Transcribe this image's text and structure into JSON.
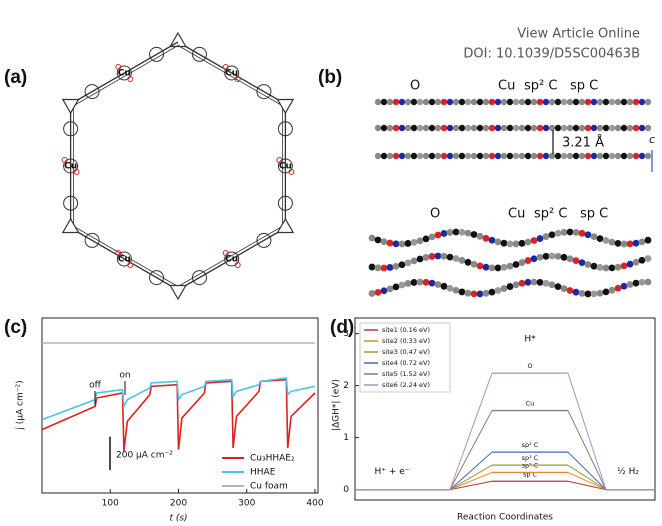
{
  "header": {
    "link": "View Article Online",
    "doi": "DOI: 10.1039/D5SC00463B"
  },
  "panels": {
    "a": {
      "label": "(a)",
      "cu_labels": [
        "Cu",
        "Cu",
        "Cu",
        "Cu",
        "Cu",
        "Cu"
      ]
    },
    "b": {
      "label": "(b)",
      "top_legend": [
        "O",
        "Cu",
        "sp² C",
        "sp C"
      ],
      "spacing": "3.21 Å",
      "axis": "c",
      "bottom_legend": [
        "O",
        "Cu",
        "sp² C",
        "sp C"
      ]
    },
    "c": {
      "label": "(c)"
    },
    "d": {
      "label": "(d)"
    }
  },
  "chart_data": [
    {
      "type": "line",
      "xlabel": "t (s)",
      "ylabel": "j (μA cm⁻²)",
      "x": [
        0,
        78,
        80,
        118,
        120,
        125,
        158,
        160,
        198,
        200,
        205,
        238,
        240,
        278,
        280,
        285,
        318,
        320,
        358,
        360,
        365,
        400
      ],
      "series": [
        {
          "name": "Cu₃HHAE₂",
          "color": "#e02020",
          "values": [
            380,
            520,
            570,
            600,
            250,
            430,
            590,
            640,
            650,
            260,
            450,
            600,
            660,
            670,
            270,
            460,
            610,
            670,
            680,
            270,
            460,
            600
          ]
        },
        {
          "name": "HHAE",
          "color": "#4cc3e8",
          "values": [
            440,
            560,
            600,
            620,
            520,
            560,
            630,
            660,
            670,
            560,
            590,
            640,
            670,
            680,
            580,
            610,
            650,
            670,
            690,
            590,
            610,
            640
          ]
        },
        {
          "name": "Cu foam",
          "color": "#b5b5b5",
          "values": [
            900,
            900,
            900,
            900,
            900,
            900,
            900,
            900,
            900,
            900,
            900,
            900,
            900,
            900,
            900,
            900,
            900,
            900,
            900,
            900,
            900,
            900
          ]
        }
      ],
      "xlim": [
        0,
        400
      ],
      "xticks": [
        100,
        200,
        300,
        400
      ],
      "ylim": [
        0,
        1050
      ],
      "annotations": [
        "off",
        "on"
      ],
      "scale_bar": {
        "value": 200,
        "label": "200 μA cm⁻²"
      },
      "legend": "lower right"
    },
    {
      "type": "profile",
      "xlabel": "Reaction Coordinates",
      "ylabel": "|ΔGH*| (eV)",
      "categories": [
        "H⁺ + e⁻",
        "H*",
        "½ H₂"
      ],
      "series": [
        {
          "name": "site1 (0.16 eV)",
          "color": "#c0392b",
          "label": "sp C",
          "values": [
            0,
            0.16,
            0
          ]
        },
        {
          "name": "site2 (0.33 eV)",
          "color": "#e08a2c",
          "label": "sp² C",
          "values": [
            0,
            0.33,
            0
          ]
        },
        {
          "name": "site3 (0.47 eV)",
          "color": "#9a9a3a",
          "label": "sp² C",
          "values": [
            0,
            0.47,
            0
          ]
        },
        {
          "name": "site4 (0.72 eV)",
          "color": "#3a6fb0",
          "label": "sp² C",
          "values": [
            0,
            0.72,
            0
          ]
        },
        {
          "name": "site5 (1.52 eV)",
          "color": "#8b7a72",
          "label": "Cu",
          "values": [
            0,
            1.52,
            0
          ]
        },
        {
          "name": "site6 (2.24 eV)",
          "color": "#b08ccf",
          "label": "O",
          "values": [
            0,
            2.24,
            0
          ]
        }
      ],
      "ylim": [
        -0.2,
        3.3
      ],
      "yticks": [
        0,
        1,
        2,
        3
      ],
      "legend": "upper left"
    }
  ]
}
